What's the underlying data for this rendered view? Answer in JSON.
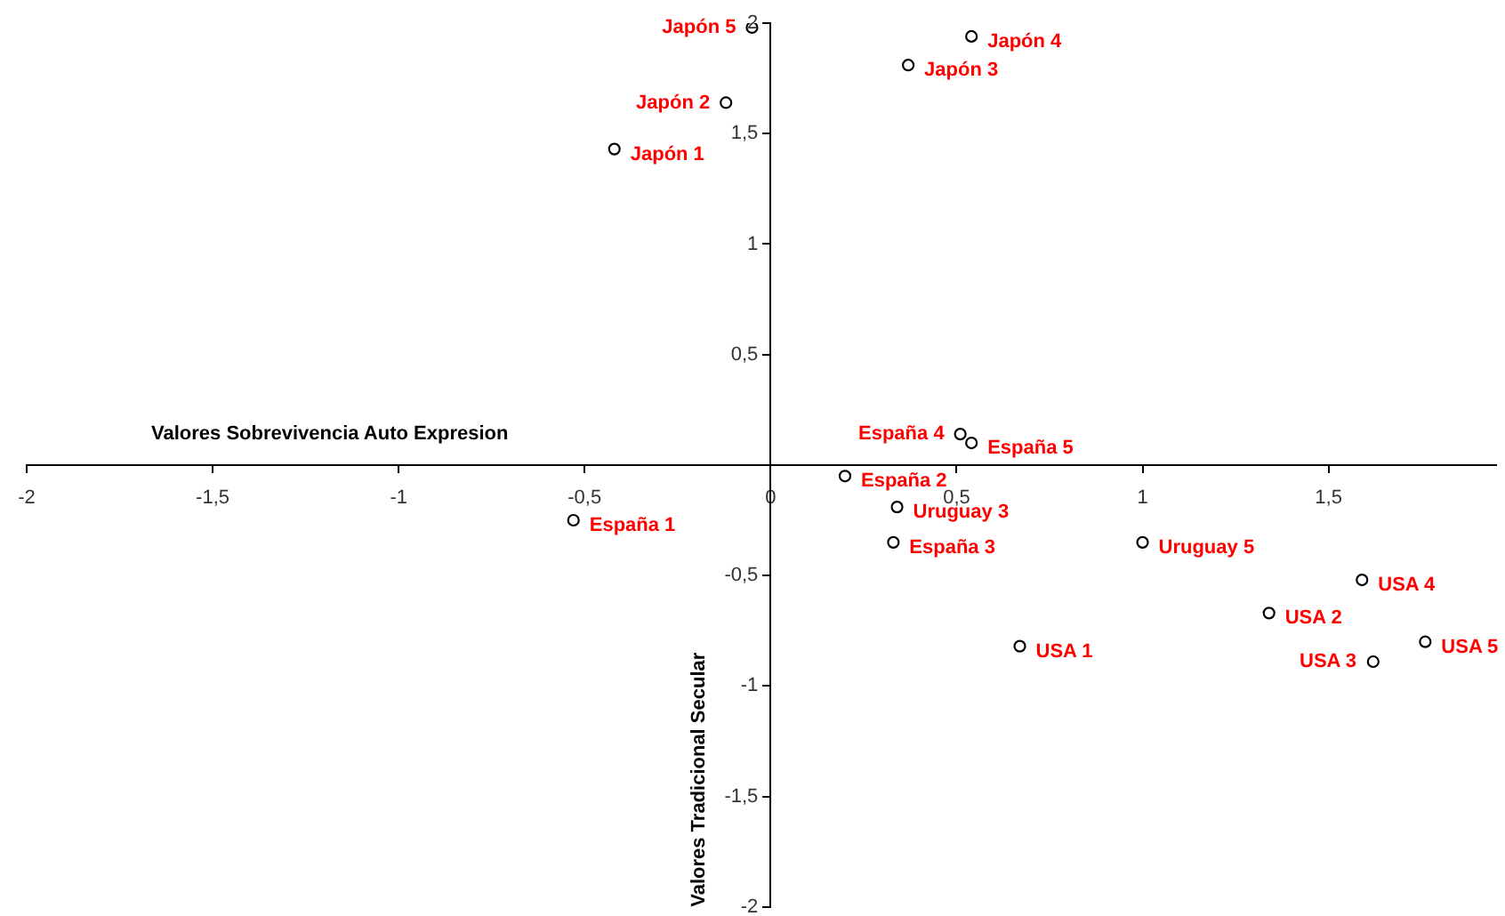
{
  "chart_data": {
    "type": "scatter",
    "xlabel": "Valores Sobrevivencia Auto Expresion",
    "ylabel": "Valores Tradicional Secular",
    "xlim": [
      -2,
      1.95
    ],
    "ylim": [
      -2,
      2
    ],
    "xticks": [
      -2,
      {
        "value": -1.5,
        "label": "-1,5"
      },
      -1,
      {
        "value": -0.5,
        "label": "-0,5"
      },
      0,
      {
        "value": 0.5,
        "label": "0,5"
      },
      1,
      {
        "value": 1.5,
        "label": "1,5"
      }
    ],
    "yticks": [
      -2,
      {
        "value": -1.5,
        "label": "-1,5"
      },
      -1,
      {
        "value": -0.5,
        "label": "-0,5"
      },
      {
        "value": 0.5,
        "label": "0,5"
      },
      1,
      {
        "value": 1.5,
        "label": "1,5"
      },
      2
    ],
    "grid": false,
    "legend": false,
    "marker": "circle",
    "series": [
      {
        "color": "#000000",
        "x": [
          -0.05,
          0.54,
          0.37,
          -0.12,
          -0.42,
          0.51,
          0.54,
          0.2,
          0.34,
          0.33,
          1.0,
          -0.53,
          1.59,
          1.34,
          1.76,
          1.62,
          0.67
        ],
        "values": [
          1.98,
          1.94,
          1.81,
          1.64,
          1.43,
          0.14,
          0.1,
          -0.05,
          -0.19,
          -0.35,
          -0.35,
          -0.25,
          -0.52,
          -0.67,
          -0.8,
          -0.89,
          -0.82
        ]
      }
    ],
    "annotations": [
      {
        "text": "Japón 5",
        "x": -0.05,
        "y": 1.98
      },
      {
        "text": "Japón 4",
        "x": 0.54,
        "y": 1.94
      },
      {
        "text": "Japón 3",
        "x": 0.37,
        "y": 1.81
      },
      {
        "text": "Japón 2",
        "x": -0.12,
        "y": 1.64
      },
      {
        "text": "Japón 1",
        "x": -0.42,
        "y": 1.43
      },
      {
        "text": "España 4",
        "x": 0.51,
        "y": 0.14
      },
      {
        "text": "España 5",
        "x": 0.54,
        "y": 0.1
      },
      {
        "text": "España 2",
        "x": 0.2,
        "y": -0.05
      },
      {
        "text": "Uruguay 3",
        "x": 0.34,
        "y": -0.19
      },
      {
        "text": "España 3",
        "x": 0.33,
        "y": -0.35
      },
      {
        "text": "Uruguay 5",
        "x": 1.0,
        "y": -0.35
      },
      {
        "text": "España 1",
        "x": -0.53,
        "y": -0.25
      },
      {
        "text": "USA 4",
        "x": 1.59,
        "y": -0.52
      },
      {
        "text": "USA 2",
        "x": 1.34,
        "y": -0.67
      },
      {
        "text": "USA 5",
        "x": 1.76,
        "y": -0.8
      },
      {
        "text": "USA 3",
        "x": 1.62,
        "y": -0.89
      },
      {
        "text": "USA 1",
        "x": 0.67,
        "y": -0.82
      }
    ]
  }
}
